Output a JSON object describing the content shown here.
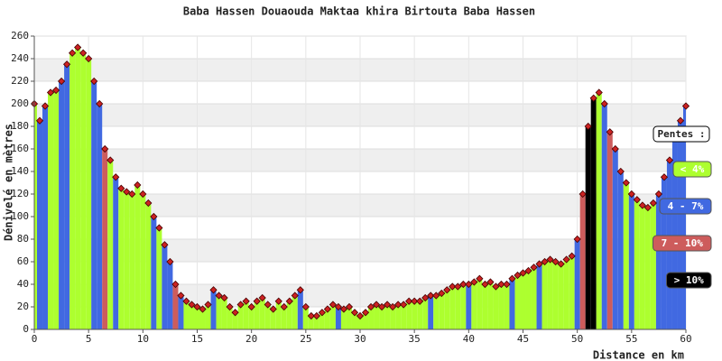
{
  "chart_data": {
    "type": "elevation-profile",
    "title": "Baba Hassen Douaouda Maktaa khira Birtouta Baba Hassen",
    "y_label": "Dénivelé en mètres",
    "x_label": "Distance en km",
    "xlim": [
      0,
      60
    ],
    "ylim": [
      0,
      260
    ],
    "xticks": [
      0,
      5,
      10,
      15,
      20,
      25,
      30,
      35,
      40,
      45,
      50,
      55,
      60
    ],
    "yticks": [
      0,
      20,
      40,
      60,
      80,
      100,
      120,
      140,
      160,
      180,
      200,
      220,
      240,
      260
    ],
    "grid": true,
    "legend_title": "Pentes :",
    "legend": [
      {
        "label": "< 4%",
        "color": "#adff2f"
      },
      {
        "label": "4 - 7%",
        "color": "#4169e1"
      },
      {
        "label": "7 - 10%",
        "color": "#cd5c5c"
      },
      {
        "label": "> 10%",
        "color": "#000000"
      }
    ],
    "marker_color": "#cc2222",
    "x": [
      0,
      0.5,
      1,
      1.5,
      2,
      2.5,
      3,
      3.5,
      4,
      4.5,
      5,
      5.5,
      6,
      6.5,
      7,
      7.5,
      8,
      8.5,
      9,
      9.5,
      10,
      10.5,
      11,
      11.5,
      12,
      12.5,
      13,
      13.5,
      14,
      14.5,
      15,
      15.5,
      16,
      16.5,
      17,
      17.5,
      18,
      18.5,
      19,
      19.5,
      20,
      20.5,
      21,
      21.5,
      22,
      22.5,
      23,
      23.5,
      24,
      24.5,
      25,
      25.5,
      26,
      26.5,
      27,
      27.5,
      28,
      28.5,
      29,
      29.5,
      30,
      30.5,
      31,
      31.5,
      32,
      32.5,
      33,
      33.5,
      34,
      34.5,
      35,
      35.5,
      36,
      36.5,
      37,
      37.5,
      38,
      38.5,
      39,
      39.5,
      40,
      40.5,
      41,
      41.5,
      42,
      42.5,
      43,
      43.5,
      44,
      44.5,
      45,
      45.5,
      46,
      46.5,
      47,
      47.5,
      48,
      48.5,
      49,
      49.5,
      50,
      50.5,
      51,
      51.5,
      52,
      52.5,
      53,
      53.5,
      54,
      54.5,
      55,
      55.5,
      56,
      56.5,
      57,
      57.5,
      58,
      58.5,
      59,
      59.5,
      60
    ],
    "values": [
      200,
      185,
      198,
      210,
      212,
      220,
      235,
      245,
      250,
      245,
      240,
      220,
      200,
      160,
      150,
      135,
      125,
      122,
      120,
      128,
      120,
      112,
      100,
      90,
      75,
      60,
      40,
      30,
      25,
      22,
      20,
      18,
      22,
      35,
      30,
      28,
      20,
      15,
      22,
      25,
      20,
      25,
      28,
      22,
      18,
      25,
      20,
      25,
      30,
      35,
      20,
      12,
      12,
      15,
      18,
      22,
      20,
      18,
      20,
      15,
      12,
      15,
      20,
      22,
      20,
      22,
      20,
      22,
      22,
      25,
      25,
      25,
      28,
      30,
      30,
      32,
      35,
      38,
      38,
      40,
      40,
      42,
      45,
      40,
      42,
      38,
      40,
      40,
      45,
      48,
      50,
      52,
      55,
      58,
      60,
      62,
      60,
      58,
      62,
      65,
      80,
      120,
      180,
      205,
      210,
      200,
      175,
      160,
      140,
      130,
      120,
      115,
      110,
      108,
      112,
      120,
      135,
      150,
      170,
      185,
      198
    ],
    "bar_colors": [
      "#adff2f",
      "#4169e1",
      "#4169e1",
      "#adff2f",
      "#adff2f",
      "#4169e1",
      "#4169e1",
      "#adff2f",
      "#adff2f",
      "#adff2f",
      "#adff2f",
      "#4169e1",
      "#4169e1",
      "#cd5c5c",
      "#adff2f",
      "#4169e1",
      "#adff2f",
      "#adff2f",
      "#adff2f",
      "#adff2f",
      "#adff2f",
      "#adff2f",
      "#4169e1",
      "#adff2f",
      "#4169e1",
      "#4169e1",
      "#cd5c5c",
      "#4169e1",
      "#adff2f",
      "#adff2f",
      "#adff2f",
      "#adff2f",
      "#adff2f",
      "#4169e1",
      "#adff2f",
      "#adff2f",
      "#adff2f",
      "#adff2f",
      "#adff2f",
      "#adff2f",
      "#adff2f",
      "#adff2f",
      "#adff2f",
      "#adff2f",
      "#adff2f",
      "#adff2f",
      "#adff2f",
      "#adff2f",
      "#adff2f",
      "#4169e1",
      "#adff2f",
      "#adff2f",
      "#adff2f",
      "#adff2f",
      "#adff2f",
      "#adff2f",
      "#4169e1",
      "#adff2f",
      "#adff2f",
      "#adff2f",
      "#adff2f",
      "#adff2f",
      "#adff2f",
      "#adff2f",
      "#adff2f",
      "#adff2f",
      "#adff2f",
      "#adff2f",
      "#adff2f",
      "#adff2f",
      "#adff2f",
      "#adff2f",
      "#adff2f",
      "#4169e1",
      "#adff2f",
      "#adff2f",
      "#adff2f",
      "#adff2f",
      "#adff2f",
      "#adff2f",
      "#4169e1",
      "#adff2f",
      "#adff2f",
      "#adff2f",
      "#adff2f",
      "#adff2f",
      "#adff2f",
      "#adff2f",
      "#4169e1",
      "#adff2f",
      "#adff2f",
      "#adff2f",
      "#adff2f",
      "#4169e1",
      "#adff2f",
      "#adff2f",
      "#adff2f",
      "#adff2f",
      "#adff2f",
      "#adff2f",
      "#4169e1",
      "#cd5c5c",
      "#000000",
      "#000000",
      "#adff2f",
      "#4169e1",
      "#cd5c5c",
      "#4169e1",
      "#4169e1",
      "#adff2f",
      "#4169e1",
      "#adff2f",
      "#adff2f",
      "#adff2f",
      "#adff2f",
      "#4169e1",
      "#4169e1",
      "#4169e1",
      "#4169e1",
      "#4169e1",
      "#4169e1"
    ]
  }
}
